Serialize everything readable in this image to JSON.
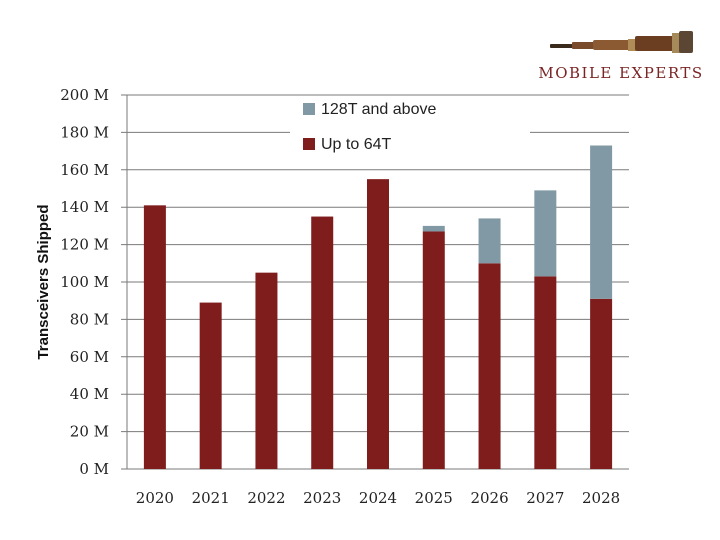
{
  "brand": {
    "name": "MOBILE EXPERTS",
    "logo_icon": "telescope-icon"
  },
  "colors": {
    "up_to_64t": "#7f1d1d",
    "128t_and_above": "#8199a4",
    "grid": "#7a7a7a",
    "brand": "#7a2424"
  },
  "chart_data": {
    "type": "bar",
    "stacked": true,
    "title": "",
    "xlabel": "",
    "ylabel": "Transceivers Shipped",
    "ylim": [
      0,
      200
    ],
    "yticks": [
      0,
      20,
      40,
      60,
      80,
      100,
      120,
      140,
      160,
      180,
      200
    ],
    "ytick_labels": [
      "0 M",
      "20 M",
      "40 M",
      "60 M",
      "80 M",
      "100 M",
      "120 M",
      "140 M",
      "160 M",
      "180 M",
      "200 M"
    ],
    "grid": true,
    "legend_position": "top",
    "categories": [
      "2020",
      "2021",
      "2022",
      "2023",
      "2024",
      "2025",
      "2026",
      "2027",
      "2028"
    ],
    "series": [
      {
        "name": "Up to 64T",
        "color": "#7f1d1d",
        "values": [
          141,
          89,
          105,
          135,
          155,
          127,
          110,
          103,
          91
        ]
      },
      {
        "name": "128T and above",
        "color": "#8199a4",
        "values": [
          0,
          0,
          0,
          0,
          0,
          3,
          24,
          46,
          82
        ]
      }
    ],
    "legend_order": [
      "128T and above",
      "Up to 64T"
    ]
  }
}
